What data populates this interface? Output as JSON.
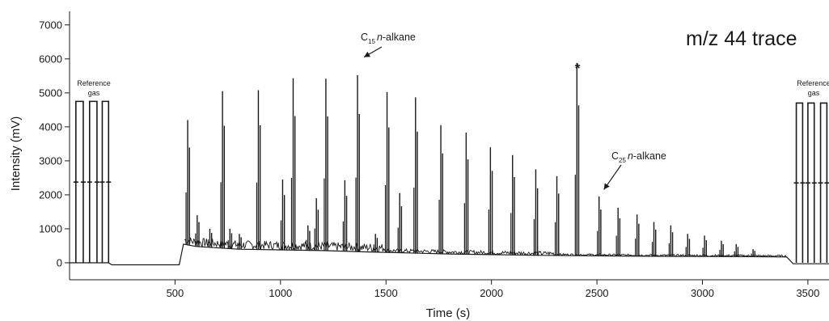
{
  "chart_data": {
    "type": "line",
    "title": "m/z 44 trace",
    "xlabel": "Time (s)",
    "ylabel": "Intensity (mV)",
    "xlim": [
      0,
      3600
    ],
    "ylim": [
      -500,
      7400
    ],
    "xticks": [
      500,
      1000,
      1500,
      2000,
      2500,
      3000,
      3500
    ],
    "xtick_labels": [
      "500",
      "1000",
      "1500",
      "2000",
      "2500",
      "3000",
      "3500"
    ],
    "yticks": [
      0,
      1000,
      2000,
      3000,
      4000,
      5000,
      6000,
      7000
    ],
    "ytick_labels": [
      "0",
      "1000",
      "2000",
      "3000",
      "4000",
      "5000",
      "6000",
      "7000"
    ],
    "grid": false,
    "line_color": "#1a1a1a",
    "baseline": [
      {
        "x": 0,
        "y": 0
      },
      {
        "x": 185,
        "y": 0
      },
      {
        "x": 200,
        "y": -60
      },
      {
        "x": 520,
        "y": -60
      },
      {
        "x": 540,
        "y": 550
      },
      {
        "x": 600,
        "y": 480
      },
      {
        "x": 800,
        "y": 400
      },
      {
        "x": 1000,
        "y": 380
      },
      {
        "x": 1200,
        "y": 360
      },
      {
        "x": 1400,
        "y": 320
      },
      {
        "x": 1600,
        "y": 290
      },
      {
        "x": 1800,
        "y": 260
      },
      {
        "x": 2000,
        "y": 240
      },
      {
        "x": 2200,
        "y": 220
      },
      {
        "x": 2400,
        "y": 210
      },
      {
        "x": 2600,
        "y": 200
      },
      {
        "x": 2800,
        "y": 190
      },
      {
        "x": 3000,
        "y": 185
      },
      {
        "x": 3200,
        "y": 180
      },
      {
        "x": 3400,
        "y": 170
      },
      {
        "x": 3430,
        "y": -30
      },
      {
        "x": 3600,
        "y": -30
      }
    ],
    "reference_gas_pulses": [
      {
        "start": 30,
        "end": 65,
        "y": 4750
      },
      {
        "start": 95,
        "end": 130,
        "y": 4750
      },
      {
        "start": 155,
        "end": 185,
        "y": 4750
      },
      {
        "start": 3445,
        "end": 3475,
        "y": 4700
      },
      {
        "start": 3500,
        "end": 3530,
        "y": 4700
      },
      {
        "start": 3560,
        "end": 3590,
        "y": 4700
      }
    ],
    "peaks": [
      {
        "x": 560,
        "y": 4200
      },
      {
        "x": 605,
        "y": 1400
      },
      {
        "x": 665,
        "y": 1000
      },
      {
        "x": 725,
        "y": 5050
      },
      {
        "x": 760,
        "y": 1000
      },
      {
        "x": 805,
        "y": 850
      },
      {
        "x": 895,
        "y": 5080
      },
      {
        "x": 1010,
        "y": 2450
      },
      {
        "x": 1060,
        "y": 5430
      },
      {
        "x": 1130,
        "y": 1100
      },
      {
        "x": 1170,
        "y": 1900
      },
      {
        "x": 1215,
        "y": 5420
      },
      {
        "x": 1305,
        "y": 2430
      },
      {
        "x": 1365,
        "y": 5520
      },
      {
        "x": 1450,
        "y": 850
      },
      {
        "x": 1505,
        "y": 5020
      },
      {
        "x": 1565,
        "y": 2050
      },
      {
        "x": 1640,
        "y": 4870
      },
      {
        "x": 1760,
        "y": 4050
      },
      {
        "x": 1880,
        "y": 3830
      },
      {
        "x": 1995,
        "y": 3400
      },
      {
        "x": 2100,
        "y": 3170
      },
      {
        "x": 2210,
        "y": 2750
      },
      {
        "x": 2310,
        "y": 2550
      },
      {
        "x": 2405,
        "y": 5880
      },
      {
        "x": 2510,
        "y": 1950
      },
      {
        "x": 2600,
        "y": 1620
      },
      {
        "x": 2690,
        "y": 1420
      },
      {
        "x": 2770,
        "y": 1200
      },
      {
        "x": 2850,
        "y": 1100
      },
      {
        "x": 2930,
        "y": 850
      },
      {
        "x": 3010,
        "y": 800
      },
      {
        "x": 3090,
        "y": 650
      },
      {
        "x": 3160,
        "y": 550
      },
      {
        "x": 3240,
        "y": 400
      }
    ],
    "annotations": {
      "ref_gas_left": [
        "Reference",
        "gas"
      ],
      "ref_gas_right": [
        "Reference",
        "gas"
      ],
      "c15": {
        "prefix": "C",
        "sub": "15",
        "italic": "n",
        "suffix": "-alkane",
        "target_x": 1365,
        "target_y": 6100
      },
      "c25": {
        "prefix": "C",
        "sub": "25",
        "italic": "n",
        "suffix": "-alkane",
        "target_x": 2510,
        "target_y": 2250
      },
      "star": "*"
    }
  }
}
